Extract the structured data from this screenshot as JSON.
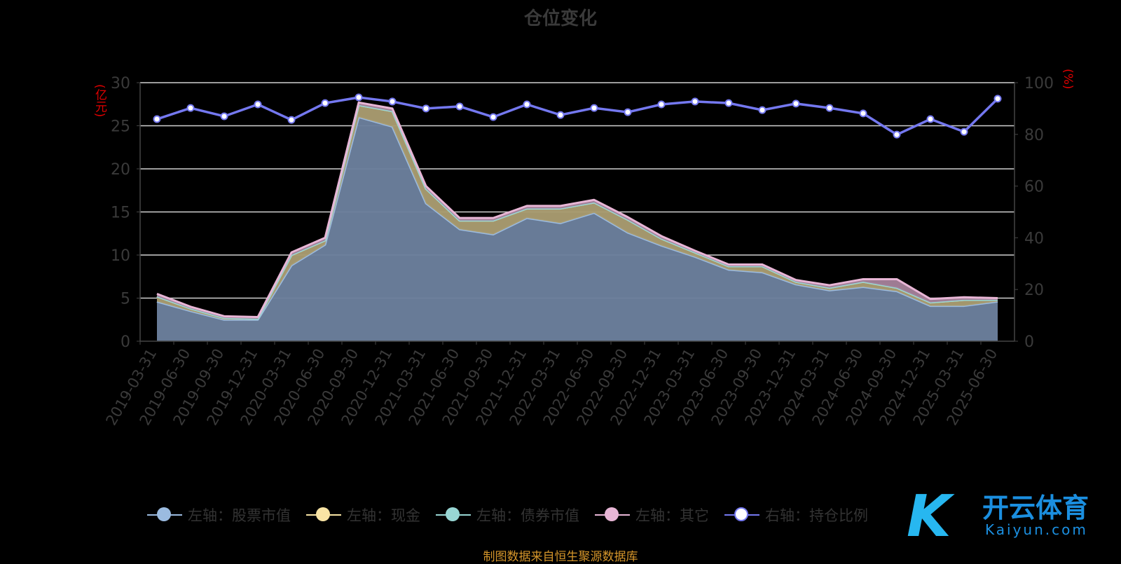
{
  "chart_data": {
    "type": "area",
    "title": "仓位变化",
    "source": "制图数据来自恒生聚源数据库",
    "left_axis": {
      "label": "(亿元)",
      "ylim": [
        0,
        30
      ],
      "ticks": [
        0,
        5,
        10,
        15,
        20,
        25,
        30
      ]
    },
    "right_axis": {
      "label": "(%)",
      "ylim": [
        0,
        100
      ],
      "ticks": [
        0,
        20,
        40,
        60,
        80,
        100
      ]
    },
    "grid": true,
    "legend_position": "bottom",
    "categories": [
      "2019-03-31",
      "2019-06-30",
      "2019-09-30",
      "2019-12-31",
      "2020-03-31",
      "2020-06-30",
      "2020-09-30",
      "2020-12-31",
      "2021-03-31",
      "2021-06-30",
      "2021-09-30",
      "2021-12-31",
      "2022-03-31",
      "2022-06-30",
      "2022-09-30",
      "2022-12-31",
      "2023-03-31",
      "2023-06-30",
      "2023-09-30",
      "2023-12-31",
      "2024-03-31",
      "2024-06-30",
      "2024-09-30",
      "2024-12-31",
      "2025-03-31",
      "2025-06-30"
    ],
    "series": [
      {
        "name": "左轴：股票市值",
        "axis": "left",
        "stacked": true,
        "color": "#9bbbe0",
        "fill": "#6b7f9c",
        "values": [
          4.6,
          3.5,
          2.5,
          2.5,
          8.8,
          11.2,
          26.0,
          24.9,
          16.0,
          13.0,
          12.4,
          14.3,
          13.7,
          14.9,
          12.6,
          11.1,
          9.8,
          8.3,
          8.0,
          6.6,
          5.9,
          6.3,
          5.8,
          4.1,
          4.1,
          4.6
        ]
      },
      {
        "name": "左轴：现金",
        "axis": "left",
        "stacked": true,
        "color": "#f9e4a4",
        "fill": "#a89b70",
        "values": [
          0.6,
          0.3,
          0.2,
          0.1,
          1.2,
          0.5,
          1.4,
          1.8,
          1.7,
          1.0,
          1.6,
          1.1,
          1.7,
          1.2,
          1.5,
          0.8,
          0.5,
          0.4,
          0.7,
          0.3,
          0.3,
          0.6,
          0.4,
          0.4,
          0.7,
          0.2
        ]
      },
      {
        "name": "左轴：债券市值",
        "axis": "left",
        "stacked": true,
        "color": "#98d6d4",
        "fill": "#5f8a88",
        "values": [
          0,
          0,
          0,
          0,
          0,
          0,
          0,
          0,
          0,
          0,
          0,
          0,
          0,
          0,
          0,
          0,
          0,
          0,
          0,
          0,
          0,
          0,
          0,
          0,
          0,
          0
        ]
      },
      {
        "name": "左轴：其它",
        "axis": "left",
        "stacked": true,
        "color": "#e8b6d6",
        "fill": "#a37f98",
        "values": [
          0.3,
          0.2,
          0.2,
          0.2,
          0.3,
          0.3,
          0.3,
          0.3,
          0.3,
          0.3,
          0.3,
          0.3,
          0.3,
          0.3,
          0.3,
          0.3,
          0.2,
          0.2,
          0.2,
          0.2,
          0.3,
          0.3,
          1.0,
          0.4,
          0.3,
          0.2
        ]
      },
      {
        "name": "右轴：持仓比例",
        "axis": "right",
        "stacked": false,
        "color": "#7478f0",
        "values": [
          85.9,
          90.2,
          87.0,
          91.6,
          85.6,
          92.1,
          94.3,
          92.7,
          90.0,
          90.8,
          86.7,
          91.6,
          87.5,
          90.2,
          88.6,
          91.6,
          92.7,
          92.1,
          89.4,
          91.9,
          90.2,
          88.1,
          79.9,
          85.9,
          81.0,
          93.8
        ]
      }
    ]
  },
  "watermark": {
    "cn": "开云体育",
    "en": "Kaiyun.com",
    "mark": "K"
  }
}
